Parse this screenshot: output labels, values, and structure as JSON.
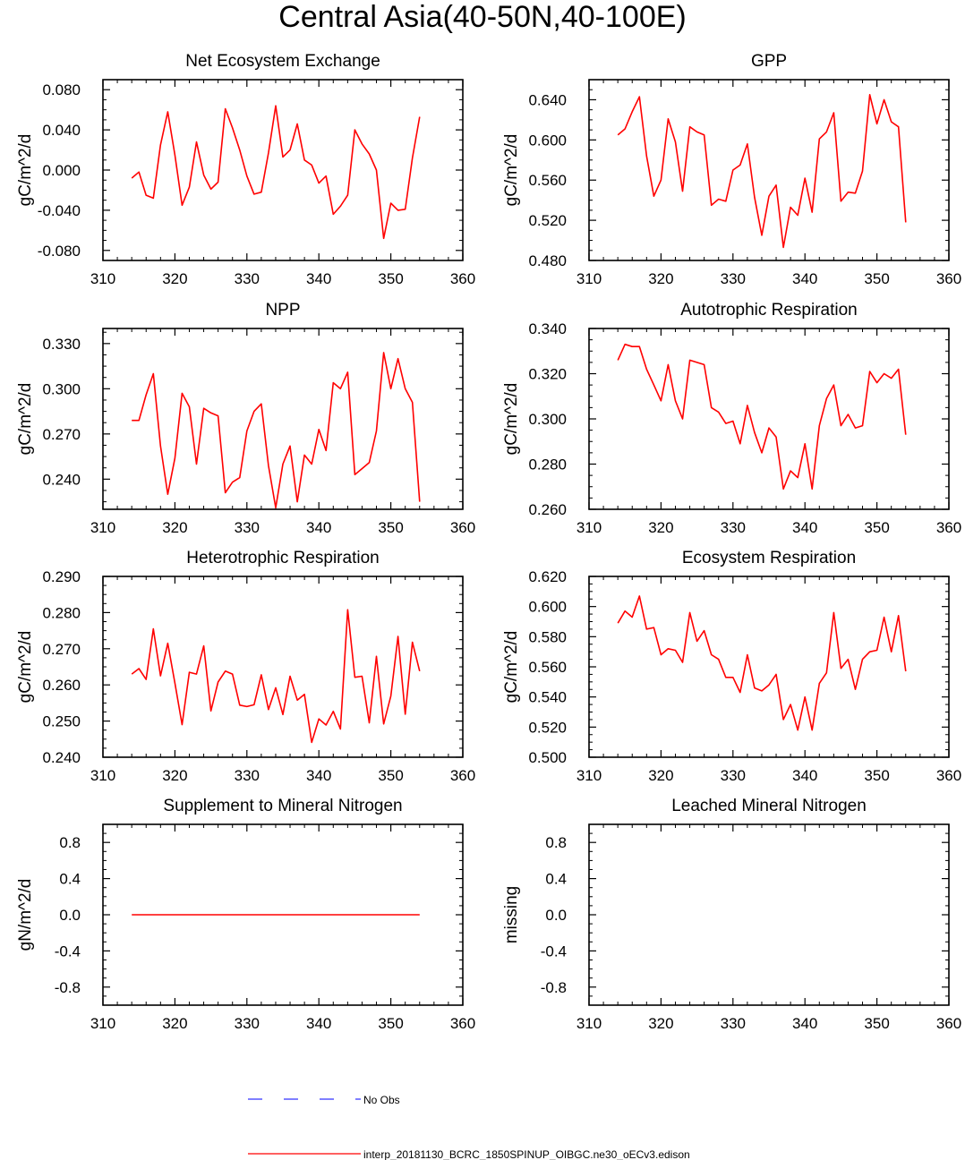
{
  "page": {
    "title": "Central Asia(40-50N,40-100E)"
  },
  "legend": {
    "obs_label": "No Obs",
    "obs_color": "#3333ff",
    "model_label": "interp_20181130_BCRC_1850SPINUP_OIBGC.ne30_oECv3.edison",
    "model_color": "#ff0000"
  },
  "chart_data": [
    {
      "type": "line",
      "title": "Net Ecosystem Exchange",
      "ylabel": "gC/m^2/d",
      "xlim": [
        310,
        360
      ],
      "xticks": [
        "310",
        "320",
        "330",
        "340",
        "350",
        "360"
      ],
      "ylim": [
        -0.09,
        0.09
      ],
      "yticks": [
        "-0.080",
        "-0.040",
        "0.000",
        "0.040",
        "0.080"
      ],
      "series": [
        {
          "name": "model",
          "x0": 314,
          "values": [
            -0.008,
            -0.002,
            -0.025,
            -0.028,
            0.025,
            0.058,
            0.015,
            -0.035,
            -0.017,
            0.028,
            -0.005,
            -0.019,
            -0.012,
            0.061,
            0.042,
            0.02,
            -0.006,
            -0.024,
            -0.022,
            0.017,
            0.064,
            0.013,
            0.02,
            0.046,
            0.01,
            0.005,
            -0.013,
            -0.006,
            -0.044,
            -0.036,
            -0.025,
            0.04,
            0.026,
            0.016,
            0.0,
            -0.068,
            -0.033,
            -0.04,
            -0.039,
            0.012,
            0.053
          ]
        }
      ]
    },
    {
      "type": "line",
      "title": "GPP",
      "ylabel": "gC/m^2/d",
      "xlim": [
        310,
        360
      ],
      "xticks": [
        "310",
        "320",
        "330",
        "340",
        "350",
        "360"
      ],
      "ylim": [
        0.48,
        0.66
      ],
      "yticks": [
        "0.480",
        "0.520",
        "0.560",
        "0.600",
        "0.640"
      ],
      "series": [
        {
          "name": "model",
          "x0": 314,
          "values": [
            0.605,
            0.611,
            0.628,
            0.643,
            0.584,
            0.544,
            0.56,
            0.621,
            0.598,
            0.549,
            0.613,
            0.608,
            0.605,
            0.535,
            0.541,
            0.539,
            0.57,
            0.575,
            0.596,
            0.543,
            0.505,
            0.544,
            0.555,
            0.493,
            0.533,
            0.525,
            0.562,
            0.528,
            0.601,
            0.608,
            0.627,
            0.539,
            0.548,
            0.547,
            0.569,
            0.645,
            0.616,
            0.64,
            0.618,
            0.613,
            0.518
          ]
        }
      ]
    },
    {
      "type": "line",
      "title": "NPP",
      "ylabel": "gC/m^2/d",
      "xlim": [
        310,
        360
      ],
      "xticks": [
        "310",
        "320",
        "330",
        "340",
        "350",
        "360"
      ],
      "ylim": [
        0.22,
        0.34
      ],
      "yticks": [
        "0.240",
        "0.270",
        "0.300",
        "0.330"
      ],
      "series": [
        {
          "name": "model",
          "x0": 314,
          "values": [
            0.279,
            0.279,
            0.296,
            0.31,
            0.262,
            0.23,
            0.254,
            0.297,
            0.288,
            0.25,
            0.287,
            0.284,
            0.282,
            0.231,
            0.238,
            0.241,
            0.272,
            0.285,
            0.29,
            0.249,
            0.221,
            0.25,
            0.262,
            0.225,
            0.256,
            0.25,
            0.273,
            0.259,
            0.304,
            0.3,
            0.311,
            0.243,
            0.247,
            0.251,
            0.272,
            0.324,
            0.3,
            0.32,
            0.3,
            0.291,
            0.225
          ]
        }
      ]
    },
    {
      "type": "line",
      "title": "Autotrophic Respiration",
      "ylabel": "gC/m^2/d",
      "xlim": [
        310,
        360
      ],
      "xticks": [
        "310",
        "320",
        "330",
        "340",
        "350",
        "360"
      ],
      "ylim": [
        0.26,
        0.34
      ],
      "yticks": [
        "0.260",
        "0.280",
        "0.300",
        "0.320",
        "0.340"
      ],
      "series": [
        {
          "name": "model",
          "x0": 314,
          "values": [
            0.326,
            0.333,
            0.332,
            0.332,
            0.322,
            0.315,
            0.308,
            0.324,
            0.308,
            0.3,
            0.326,
            0.325,
            0.324,
            0.305,
            0.303,
            0.298,
            0.299,
            0.289,
            0.306,
            0.294,
            0.285,
            0.296,
            0.292,
            0.269,
            0.277,
            0.274,
            0.289,
            0.269,
            0.297,
            0.309,
            0.315,
            0.297,
            0.302,
            0.296,
            0.297,
            0.321,
            0.316,
            0.32,
            0.318,
            0.322,
            0.293
          ]
        }
      ]
    },
    {
      "type": "line",
      "title": "Heterotrophic Respiration",
      "ylabel": "gC/m^2/d",
      "xlim": [
        310,
        360
      ],
      "xticks": [
        "310",
        "320",
        "330",
        "340",
        "350",
        "360"
      ],
      "ylim": [
        0.24,
        0.29
      ],
      "yticks": [
        "0.240",
        "0.250",
        "0.260",
        "0.270",
        "0.280",
        "0.290"
      ],
      "series": [
        {
          "name": "model",
          "x0": 314,
          "values": [
            0.263,
            0.2645,
            0.2615,
            0.2755,
            0.2625,
            0.2715,
            0.2605,
            0.249,
            0.2635,
            0.263,
            0.2708,
            0.2528,
            0.2608,
            0.2638,
            0.263,
            0.2544,
            0.254,
            0.2545,
            0.2628,
            0.2532,
            0.2592,
            0.2518,
            0.2624,
            0.2558,
            0.2574,
            0.2441,
            0.2506,
            0.2489,
            0.2527,
            0.2478,
            0.2808,
            0.2621,
            0.2624,
            0.2495,
            0.2679,
            0.2492,
            0.2569,
            0.2734,
            0.2519,
            0.2718,
            0.2638
          ]
        }
      ]
    },
    {
      "type": "line",
      "title": "Ecosystem Respiration",
      "ylabel": "gC/m^2/d",
      "xlim": [
        310,
        360
      ],
      "xticks": [
        "310",
        "320",
        "330",
        "340",
        "350",
        "360"
      ],
      "ylim": [
        0.5,
        0.62
      ],
      "yticks": [
        "0.500",
        "0.520",
        "0.540",
        "0.560",
        "0.580",
        "0.600",
        "0.620"
      ],
      "series": [
        {
          "name": "model",
          "x0": 314,
          "values": [
            0.589,
            0.597,
            0.593,
            0.607,
            0.585,
            0.586,
            0.568,
            0.572,
            0.571,
            0.563,
            0.596,
            0.577,
            0.584,
            0.568,
            0.565,
            0.553,
            0.553,
            0.543,
            0.568,
            0.546,
            0.544,
            0.548,
            0.555,
            0.525,
            0.535,
            0.518,
            0.54,
            0.518,
            0.549,
            0.556,
            0.596,
            0.559,
            0.565,
            0.545,
            0.565,
            0.57,
            0.571,
            0.593,
            0.57,
            0.594,
            0.557
          ]
        }
      ]
    },
    {
      "type": "line",
      "title": "Supplement to Mineral Nitrogen",
      "ylabel": "gN/m^2/d",
      "xlim": [
        310,
        360
      ],
      "xticks": [
        "310",
        "320",
        "330",
        "340",
        "350",
        "360"
      ],
      "ylim": [
        -1.0,
        1.0
      ],
      "yticks": [
        "-0.8",
        "-0.4",
        "0.0",
        "0.4",
        "0.8"
      ],
      "series": [
        {
          "name": "model",
          "x0": 314,
          "values": [
            0.0,
            0.0,
            0.0,
            0.0,
            0.0,
            0.0,
            0.0,
            0.0,
            0.0,
            0.0,
            0.0,
            0.0,
            0.0,
            0.0,
            0.0,
            0.0,
            0.0,
            0.0,
            0.0,
            0.0,
            0.0,
            0.0,
            0.0,
            0.0,
            0.0,
            0.0,
            0.0,
            0.0,
            0.0,
            0.0,
            0.0,
            0.0,
            0.0,
            0.0,
            0.0,
            0.0,
            0.0,
            0.0,
            0.0,
            0.0,
            0.0
          ]
        }
      ]
    },
    {
      "type": "line",
      "title": "Leached Mineral Nitrogen",
      "ylabel": "missing",
      "xlim": [
        310,
        360
      ],
      "xticks": [
        "310",
        "320",
        "330",
        "340",
        "350",
        "360"
      ],
      "ylim": [
        -1.0,
        1.0
      ],
      "yticks": [
        "-0.8",
        "-0.4",
        "0.0",
        "0.4",
        "0.8"
      ],
      "series": []
    }
  ]
}
